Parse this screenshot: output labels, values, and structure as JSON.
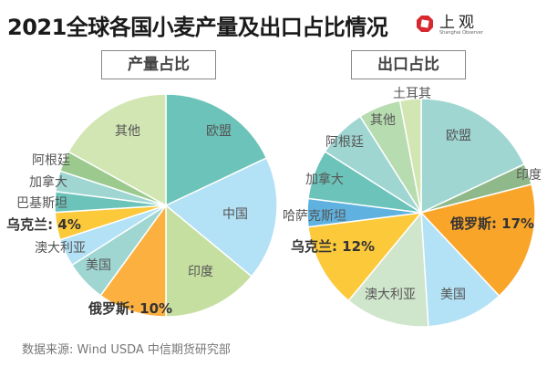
{
  "title": "2021全球各国小麦产量及出口占比情况",
  "logo": {
    "text": "上观",
    "sub": "Shanghai Observer",
    "color": "#d7282f"
  },
  "source": "数据来源: Wind USDA 中信期货研究部",
  "chart_data": [
    {
      "type": "pie",
      "title": "产量占比",
      "unit": "%",
      "start": "top, clockwise",
      "slices": [
        {
          "label": "欧盟",
          "value": 18,
          "color": "#6cc3b9"
        },
        {
          "label": "中国",
          "value": 18,
          "color": "#b3e1f5"
        },
        {
          "label": "印度",
          "value": 14,
          "color": "#c5dfa0"
        },
        {
          "label": "俄罗斯: 10%",
          "value": 10,
          "color": "#fbb040",
          "highlight": true
        },
        {
          "label": "美国",
          "value": 6,
          "color": "#9fd6d2"
        },
        {
          "label": "澳大利亚",
          "value": 4,
          "color": "#b3e1f5"
        },
        {
          "label": "乌克兰: 4%",
          "value": 4,
          "color": "#fcc93b",
          "highlight": true
        },
        {
          "label": "巴基斯坦",
          "value": 3,
          "color": "#6cc3b9"
        },
        {
          "label": "加拿大",
          "value": 3,
          "color": "#9fd6d2"
        },
        {
          "label": "阿根廷",
          "value": 3,
          "color": "#9cca8e"
        },
        {
          "label": "其他",
          "value": 17,
          "color": "#d2e6b3"
        }
      ]
    },
    {
      "type": "pie",
      "title": "出口占比",
      "unit": "%",
      "start": "top, clockwise",
      "slices": [
        {
          "label": "欧盟",
          "value": 18,
          "color": "#9fd6d2"
        },
        {
          "label": "印度",
          "value": 3,
          "color": "#8fb98a"
        },
        {
          "label": "俄罗斯: 17%",
          "value": 17,
          "color": "#f9a52a",
          "highlight": true
        },
        {
          "label": "美国",
          "value": 11,
          "color": "#b3e1f5"
        },
        {
          "label": "澳大利亚",
          "value": 12,
          "color": "#cfe5cc"
        },
        {
          "label": "乌克兰: 12%",
          "value": 12,
          "color": "#fcc93b",
          "highlight": true
        },
        {
          "label": "哈萨克斯坦",
          "value": 4,
          "color": "#5fb2e0"
        },
        {
          "label": "加拿大",
          "value": 7,
          "color": "#6cc3b9"
        },
        {
          "label": "阿根廷",
          "value": 7,
          "color": "#9fd6d2"
        },
        {
          "label": "其他",
          "value": 6,
          "color": "#b7dcb0"
        },
        {
          "label": "土耳其",
          "value": 3,
          "color": "#d2e6b3"
        }
      ]
    }
  ]
}
